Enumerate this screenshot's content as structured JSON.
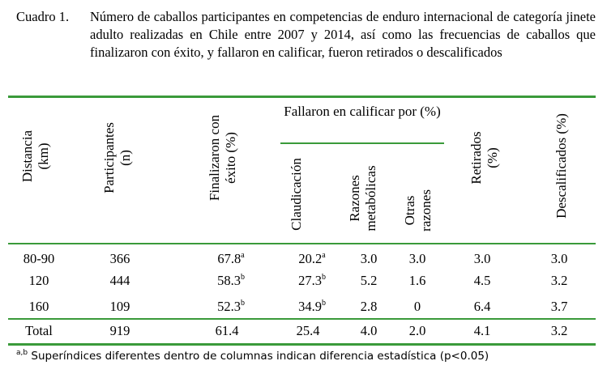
{
  "caption": {
    "label": "Cuadro 1.",
    "text": "Número de caballos participantes en competencias de enduro internacional de categoría jinete adulto realizadas en Chile entre 2007 y 2014, así como las frecuencias de caballos que finalizaron con éxito, y fallaron en calificar, fueron retirados o descalificados"
  },
  "table": {
    "group_header": "Fallaron en calificar por (%)",
    "headers": {
      "distancia": [
        "Distancia",
        "(km)"
      ],
      "participantes": [
        "Participantes",
        "(n)"
      ],
      "finalizaron": [
        "Finalizaron con",
        "éxito (%)"
      ],
      "claudicacion": [
        "Claudicación"
      ],
      "metabolicas": [
        "Razones",
        "metabólicas"
      ],
      "otras": [
        "Otras",
        "razones"
      ],
      "retirados": [
        "Retirados",
        "(%)"
      ],
      "descalificados": [
        "Descalificados (%)"
      ]
    },
    "rows": [
      {
        "distancia": "80-90",
        "participantes": "366",
        "finalizaron": "67.8",
        "finalizaron_sup": "a",
        "claudicacion": "20.2",
        "claudicacion_sup": "a",
        "metabolicas": "3.0",
        "otras": "3.0",
        "retirados": "3.0",
        "descalificados": "3.0"
      },
      {
        "distancia": "120",
        "participantes": "444",
        "finalizaron": "58.3",
        "finalizaron_sup": "b",
        "claudicacion": "27.3",
        "claudicacion_sup": "b",
        "metabolicas": "5.2",
        "otras": "1.6",
        "retirados": "4.5",
        "descalificados": "3.2"
      },
      {
        "distancia": "160",
        "participantes": "109",
        "finalizaron": "52.3",
        "finalizaron_sup": "b",
        "claudicacion": "34.9",
        "claudicacion_sup": "b",
        "metabolicas": "2.8",
        "otras": "0",
        "retirados": "6.4",
        "descalificados": "3.7"
      }
    ],
    "total": {
      "distancia": "Total",
      "participantes": "919",
      "finalizaron": "61.4",
      "claudicacion": "25.4",
      "metabolicas": "4.0",
      "otras": "2.0",
      "retirados": "4.1",
      "descalificados": "3.2"
    }
  },
  "footnote": {
    "sup": "a,b",
    "text": " Superíndices diferentes dentro de columnas indican diferencia estadística (p<0.05)"
  },
  "colors": {
    "rule": "#3a9a3a"
  }
}
